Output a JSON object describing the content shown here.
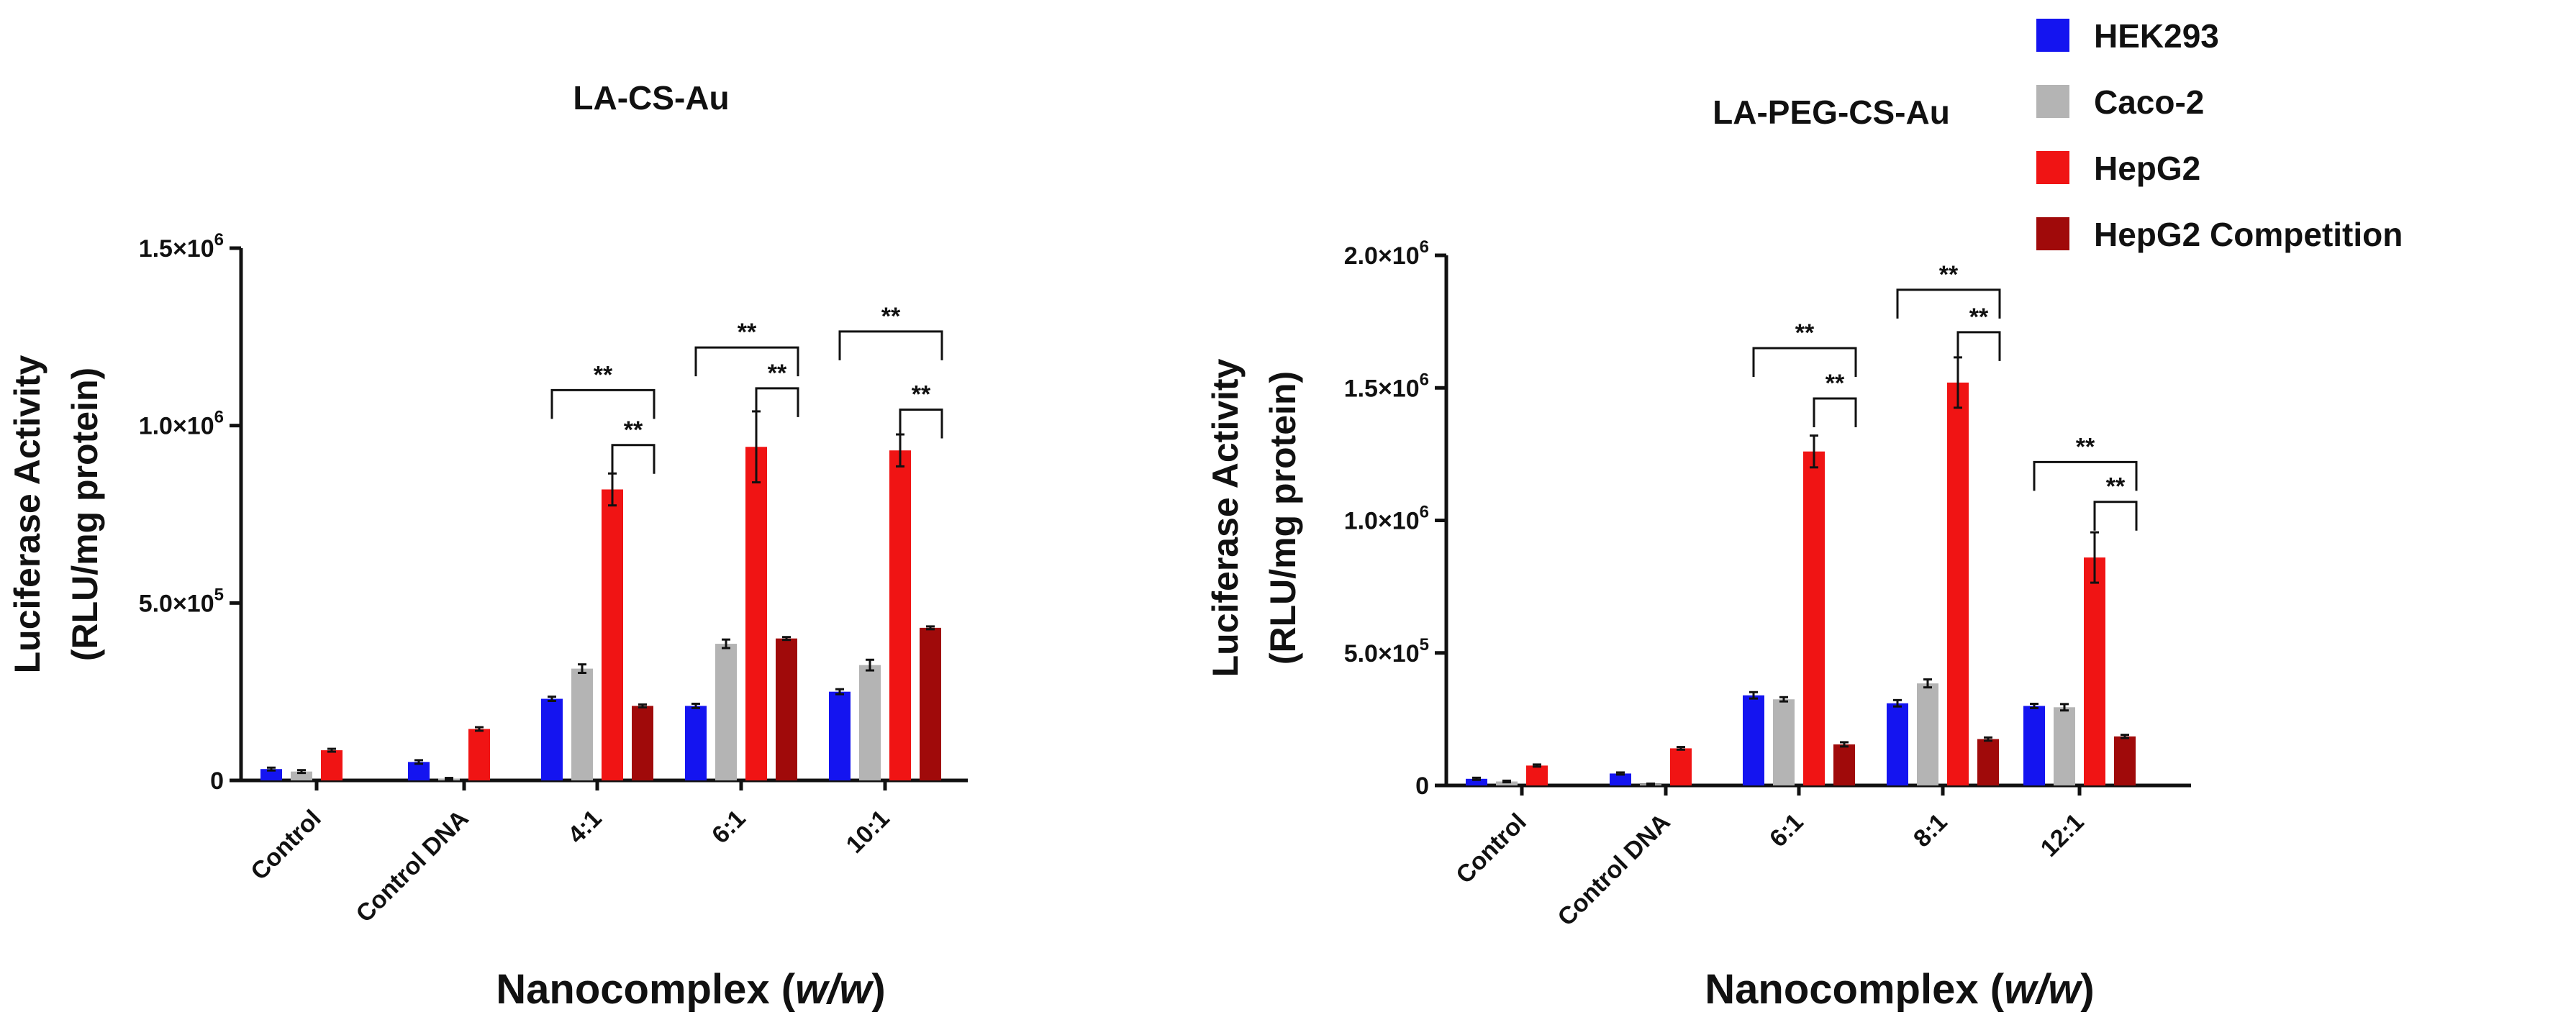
{
  "legend": [
    {
      "name": "HEK293",
      "color": "#1414f0"
    },
    {
      "name": "Caco-2",
      "color": "#b4b4b4"
    },
    {
      "name": "HepG2",
      "color": "#f01414"
    },
    {
      "name": "HepG2 Competition",
      "color": "#a00a0a"
    }
  ],
  "chart_data": [
    {
      "type": "bar",
      "title": "LA-CS-Au",
      "ylabel_line1": "Luciferase Activity",
      "ylabel_line2": "(RLU/mg protein)",
      "xlabel_main": "Nanocomplex (",
      "xlabel_italic": "w/w",
      "xlabel_end": ")",
      "ylim": [
        0,
        1500000
      ],
      "yticks": [
        0,
        500000,
        1000000,
        1500000
      ],
      "yticklabels": [
        {
          "mant": "0",
          "exp": ""
        },
        {
          "mant": "5.0×10",
          "exp": "5"
        },
        {
          "mant": "1.0×10",
          "exp": "6"
        },
        {
          "mant": "1.5×10",
          "exp": "6"
        }
      ],
      "categories": [
        "Control",
        "Control DNA",
        "4:1",
        "6:1",
        "10:1"
      ],
      "series": [
        {
          "name": "HEK293",
          "values": [
            32000,
            52000,
            230000,
            210000,
            250000
          ],
          "errors": [
            4000,
            5000,
            6000,
            6000,
            7000
          ]
        },
        {
          "name": "Caco-2",
          "values": [
            25000,
            5000,
            315000,
            385000,
            325000
          ],
          "errors": [
            4000,
            2000,
            12000,
            12000,
            15000
          ]
        },
        {
          "name": "HepG2",
          "values": [
            85000,
            145000,
            820000,
            940000,
            930000
          ],
          "errors": [
            4000,
            5000,
            45000,
            100000,
            45000
          ]
        },
        {
          "name": "HepG2 Competition",
          "values": [
            null,
            null,
            210000,
            400000,
            430000
          ],
          "errors": [
            0,
            0,
            4000,
            4000,
            4000
          ]
        }
      ],
      "significance": [
        {
          "label": "**",
          "cat": 2,
          "from": 0,
          "to": 3,
          "level": 1100000
        },
        {
          "label": "**",
          "cat": 2,
          "from": 2,
          "to": 3,
          "level": 945000
        },
        {
          "label": "**",
          "cat": 3,
          "from": 0,
          "to": 3,
          "level": 1220000
        },
        {
          "label": "**",
          "cat": 3,
          "from": 2,
          "to": 3,
          "level": 1105000
        },
        {
          "label": "**",
          "cat": 4,
          "from": 0,
          "to": 3,
          "level": 1265000
        },
        {
          "label": "**",
          "cat": 4,
          "from": 2,
          "to": 3,
          "level": 1045000
        }
      ]
    },
    {
      "type": "bar",
      "title": "LA-PEG-CS-Au",
      "ylabel_line1": "Luciferase Activity",
      "ylabel_line2": "(RLU/mg protein)",
      "xlabel_main": "Nanocomplex (",
      "xlabel_italic": "w/w",
      "xlabel_end": ")",
      "ylim": [
        0,
        2000000
      ],
      "yticks": [
        0,
        500000,
        1000000,
        1500000,
        2000000
      ],
      "yticklabels": [
        {
          "mant": "0",
          "exp": ""
        },
        {
          "mant": "5.0×10",
          "exp": "5"
        },
        {
          "mant": "1.0×10",
          "exp": "6"
        },
        {
          "mant": "1.5×10",
          "exp": "6"
        },
        {
          "mant": "2.0×10",
          "exp": "6"
        }
      ],
      "categories": [
        "Control",
        "Control DNA",
        "6:1",
        "8:1",
        "12:1"
      ],
      "series": [
        {
          "name": "HEK293",
          "values": [
            25000,
            45000,
            340000,
            310000,
            300000
          ],
          "errors": [
            4000,
            4000,
            12000,
            12000,
            8000
          ]
        },
        {
          "name": "Caco-2",
          "values": [
            15000,
            5000,
            325000,
            385000,
            295000
          ],
          "errors": [
            3000,
            2000,
            8000,
            15000,
            12000
          ]
        },
        {
          "name": "HepG2",
          "values": [
            75000,
            140000,
            1260000,
            1520000,
            860000
          ],
          "errors": [
            4000,
            5000,
            60000,
            95000,
            95000
          ]
        },
        {
          "name": "HepG2 Competition",
          "values": [
            null,
            null,
            155000,
            175000,
            185000
          ],
          "errors": [
            0,
            0,
            8000,
            6000,
            6000
          ]
        }
      ],
      "significance": [
        {
          "label": "**",
          "cat": 2,
          "from": 0,
          "to": 3,
          "level": 1650000
        },
        {
          "label": "**",
          "cat": 2,
          "from": 2,
          "to": 3,
          "level": 1460000
        },
        {
          "label": "**",
          "cat": 3,
          "from": 0,
          "to": 3,
          "level": 1870000
        },
        {
          "label": "**",
          "cat": 3,
          "from": 2,
          "to": 3,
          "level": 1710000
        },
        {
          "label": "**",
          "cat": 4,
          "from": 0,
          "to": 3,
          "level": 1220000
        },
        {
          "label": "**",
          "cat": 4,
          "from": 2,
          "to": 3,
          "level": 1070000
        }
      ]
    }
  ]
}
